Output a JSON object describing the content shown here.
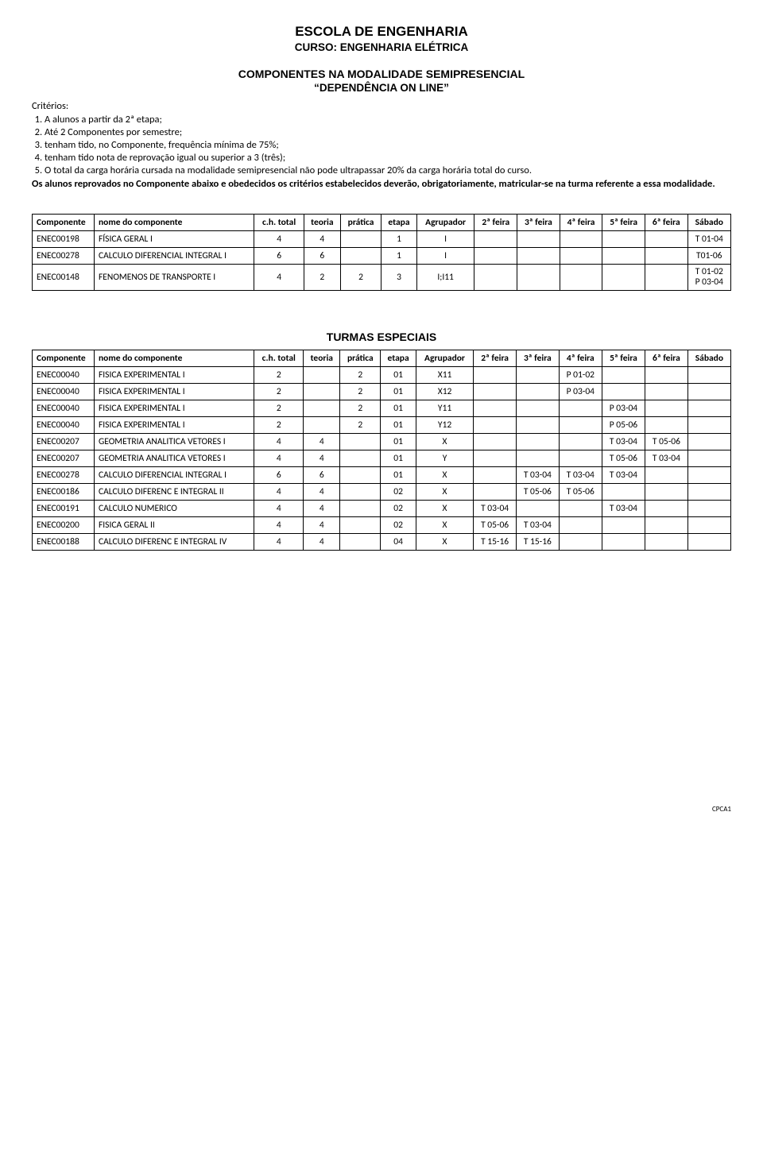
{
  "header": {
    "school": "ESCOLA DE ENGENHARIA",
    "course": "CURSO: ENGENHARIA ELÉTRICA",
    "modality_line1": "COMPONENTES NA MODALIDADE SEMIPRESENCIAL",
    "modality_line2": "“DEPENDÊNCIA ON LINE”"
  },
  "criteria": {
    "label": "Critérios:",
    "items": [
      "A alunos a partir da 2ª etapa;",
      "Até 2 Componentes por semestre;",
      "tenham tido, no Componente, frequência mínima de 75%;",
      "tenham tido nota de reprovação igual ou superior a 3 (três);",
      "O total da carga horária cursada na modalidade semipresencial não pode ultrapassar 20% da carga horária total do curso."
    ],
    "note": "Os alunos reprovados no Componente abaixo e obedecidos os critérios estabelecidos deverão, obrigatoriamente, matricular-se na turma referente a essa modalidade."
  },
  "columns": {
    "componente": "Componente",
    "nome": "nome do componente",
    "ch": "c.h. total",
    "teoria": "teoria",
    "pratica": "prática",
    "etapa": "etapa",
    "agrupador": "Agrupador",
    "f2": "2ª feira",
    "f3": "3ª feira",
    "f4": "4ª feira",
    "f5": "5ª feira",
    "f6": "6ª feira",
    "sabado": "Sábado"
  },
  "table1": [
    {
      "comp": "ENEC00198",
      "nome": "FÍSICA GERAL I",
      "ch": "4",
      "teoria": "4",
      "pratica": "",
      "etapa": "1",
      "agr": "I",
      "f2": "",
      "f3": "",
      "f4": "",
      "f5": "",
      "f6": "",
      "sab": "T 01-04"
    },
    {
      "comp": "ENEC00278",
      "nome": "CALCULO DIFERENCIAL INTEGRAL I",
      "ch": "6",
      "teoria": "6",
      "pratica": "",
      "etapa": "1",
      "agr": "I",
      "f2": "",
      "f3": "",
      "f4": "",
      "f5": "",
      "f6": "",
      "sab": "T01-06"
    },
    {
      "comp": "ENEC00148",
      "nome": "FENOMENOS DE TRANSPORTE I",
      "ch": "4",
      "teoria": "2",
      "pratica": "2",
      "etapa": "3",
      "agr": "I;I11",
      "f2": "",
      "f3": "",
      "f4": "",
      "f5": "",
      "f6": "",
      "sab": "T 01-02\nP 03-04"
    }
  ],
  "turmas_title": "TURMAS ESPECIAIS",
  "table2": [
    {
      "comp": "ENEC00040",
      "nome": "FISICA EXPERIMENTAL I",
      "ch": "2",
      "teoria": "",
      "pratica": "2",
      "etapa": "01",
      "agr": "X11",
      "f2": "",
      "f3": "",
      "f4": "P 01-02",
      "f5": "",
      "f6": "",
      "sab": ""
    },
    {
      "comp": "ENEC00040",
      "nome": "FISICA EXPERIMENTAL I",
      "ch": "2",
      "teoria": "",
      "pratica": "2",
      "etapa": "01",
      "agr": "X12",
      "f2": "",
      "f3": "",
      "f4": "P 03-04",
      "f5": "",
      "f6": "",
      "sab": ""
    },
    {
      "comp": "ENEC00040",
      "nome": "FISICA EXPERIMENTAL I",
      "ch": "2",
      "teoria": "",
      "pratica": "2",
      "etapa": "01",
      "agr": "Y11",
      "f2": "",
      "f3": "",
      "f4": "",
      "f5": "P 03-04",
      "f6": "",
      "sab": ""
    },
    {
      "comp": "ENEC00040",
      "nome": "FISICA EXPERIMENTAL I",
      "ch": "2",
      "teoria": "",
      "pratica": "2",
      "etapa": "01",
      "agr": "Y12",
      "f2": "",
      "f3": "",
      "f4": "",
      "f5": "P 05-06",
      "f6": "",
      "sab": ""
    },
    {
      "comp": "ENEC00207",
      "nome": "GEOMETRIA ANALITICA VETORES I",
      "ch": "4",
      "teoria": "4",
      "pratica": "",
      "etapa": "01",
      "agr": "X",
      "f2": "",
      "f3": "",
      "f4": "",
      "f5": "T 03-04",
      "f6": "T 05-06",
      "sab": ""
    },
    {
      "comp": "ENEC00207",
      "nome": "GEOMETRIA ANALITICA VETORES I",
      "ch": "4",
      "teoria": "4",
      "pratica": "",
      "etapa": "01",
      "agr": "Y",
      "f2": "",
      "f3": "",
      "f4": "",
      "f5": "T 05-06",
      "f6": "T 03-04",
      "sab": ""
    },
    {
      "comp": "ENEC00278",
      "nome": "CALCULO DIFERENCIAL INTEGRAL I",
      "ch": "6",
      "teoria": "6",
      "pratica": "",
      "etapa": "01",
      "agr": "X",
      "f2": "",
      "f3": "T 03-04",
      "f4": "T 03-04",
      "f5": "T 03-04",
      "f6": "",
      "sab": ""
    },
    {
      "comp": "ENEC00186",
      "nome": "CALCULO DIFERENC E INTEGRAL II",
      "ch": "4",
      "teoria": "4",
      "pratica": "",
      "etapa": "02",
      "agr": "X",
      "f2": "",
      "f3": "T 05-06",
      "f4": "T 05-06",
      "f5": "",
      "f6": "",
      "sab": ""
    },
    {
      "comp": "ENEC00191",
      "nome": "CALCULO NUMERICO",
      "ch": "4",
      "teoria": "4",
      "pratica": "",
      "etapa": "02",
      "agr": "X",
      "f2": "T 03-04",
      "f3": "",
      "f4": "",
      "f5": "T 03-04",
      "f6": "",
      "sab": ""
    },
    {
      "comp": "ENEC00200",
      "nome": "FISICA GERAL II",
      "ch": "4",
      "teoria": "4",
      "pratica": "",
      "etapa": "02",
      "agr": "X",
      "f2": "T 05-06",
      "f3": "T 03-04",
      "f4": "",
      "f5": "",
      "f6": "",
      "sab": ""
    },
    {
      "comp": "ENEC00188",
      "nome": "CALCULO DIFERENC E INTEGRAL IV",
      "ch": "4",
      "teoria": "4",
      "pratica": "",
      "etapa": "04",
      "agr": "X",
      "f2": "T 15-16",
      "f3": "T 15-16",
      "f4": "",
      "f5": "",
      "f6": "",
      "sab": ""
    }
  ],
  "footer": "CPCA1",
  "colors": {
    "text": "#000000",
    "bg": "#ffffff",
    "border": "#000000"
  }
}
